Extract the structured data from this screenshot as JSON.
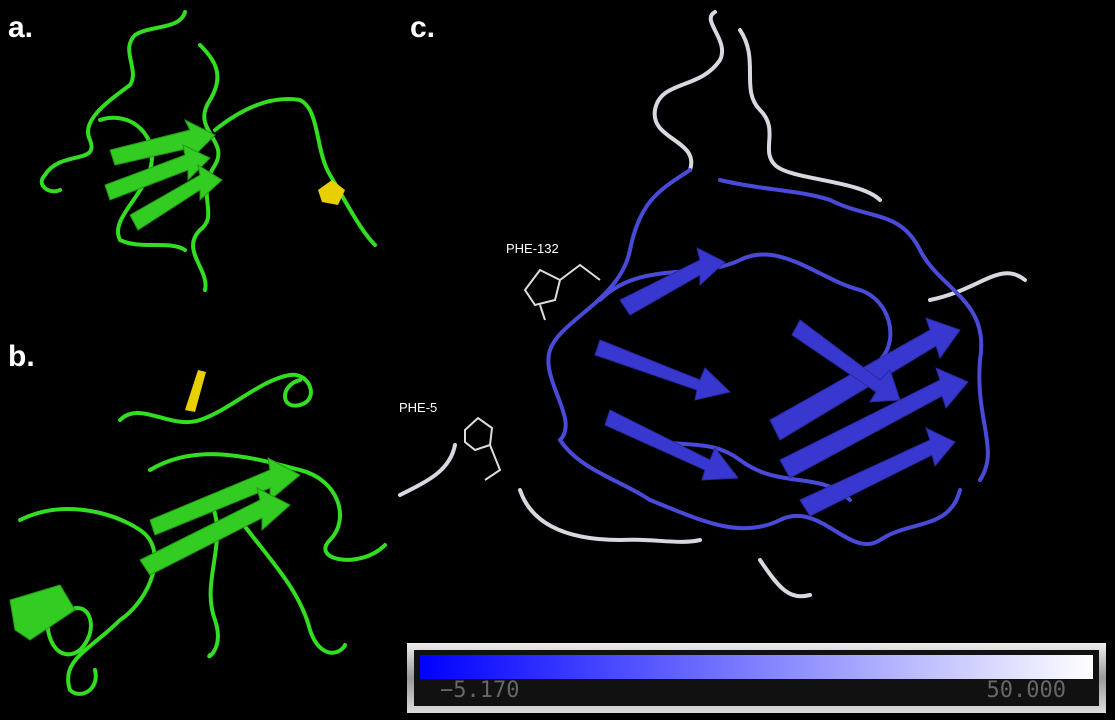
{
  "panels": [
    {
      "label": "a."
    },
    {
      "label": "b."
    },
    {
      "label": "c.",
      "annotations": [
        "PHE-132",
        "PHE-5"
      ],
      "colorbar": {
        "min_label": "−5.170",
        "max_label": "50.000"
      }
    }
  ]
}
